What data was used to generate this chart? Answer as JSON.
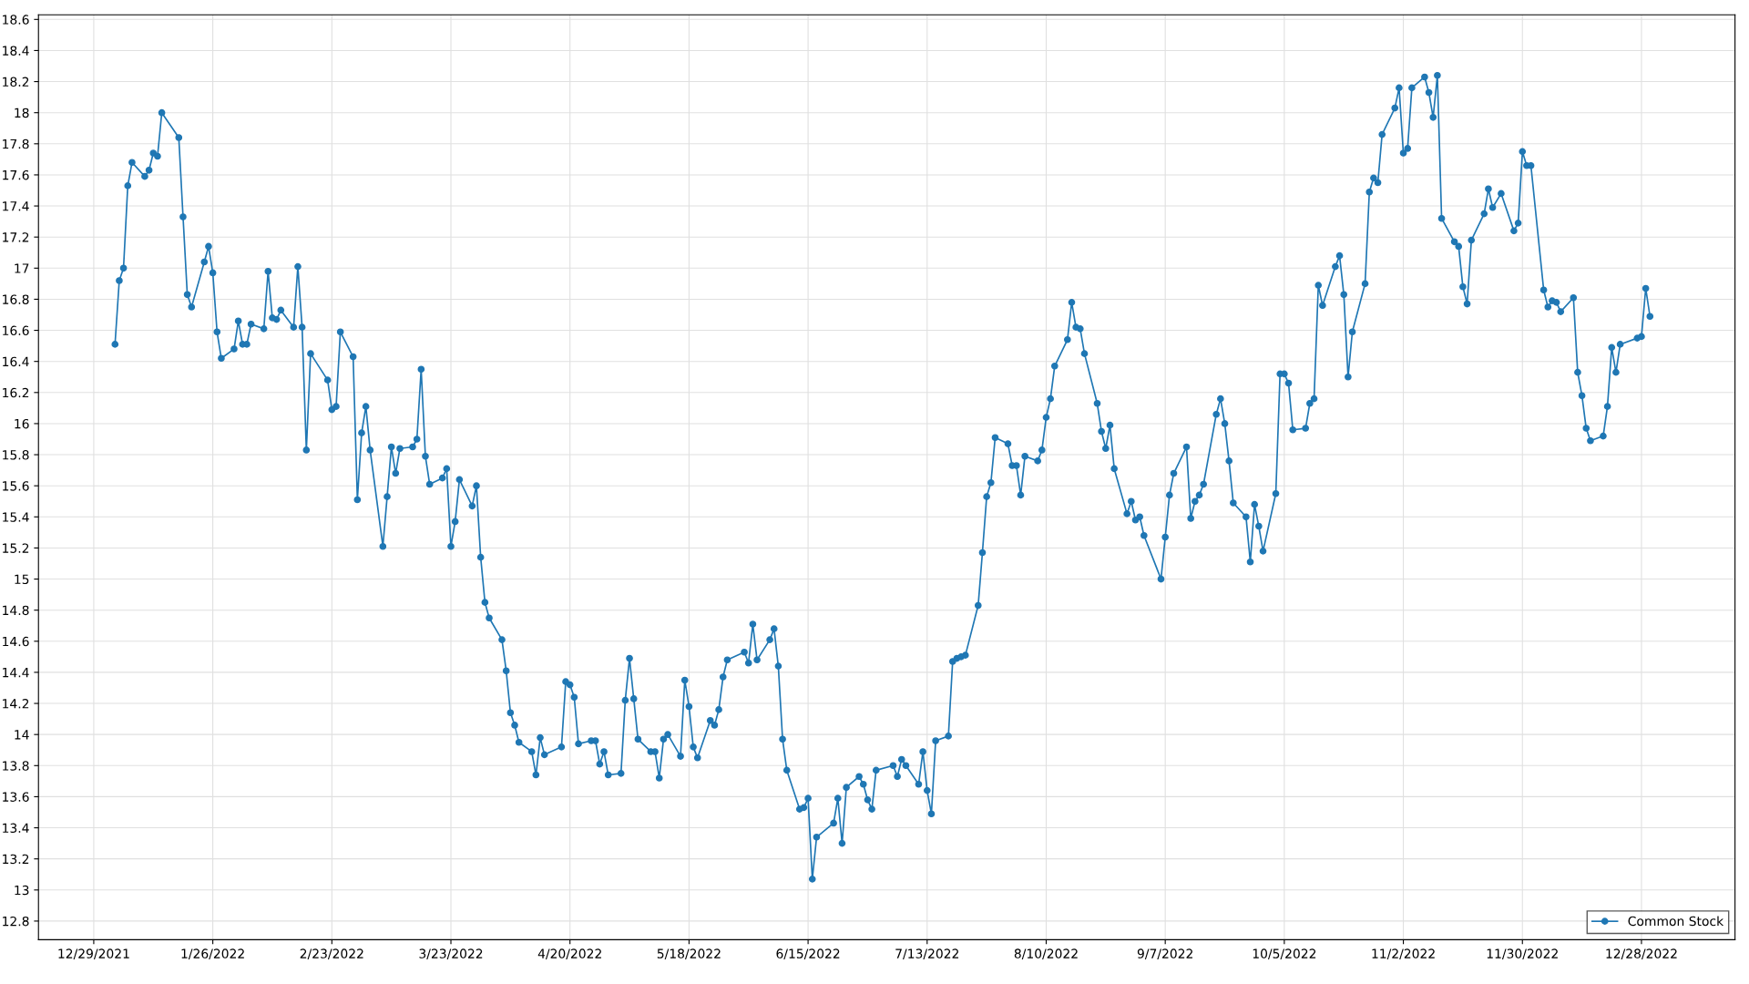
{
  "chart_data": {
    "type": "line",
    "x": [
      "2022-01-03",
      "2022-01-04",
      "2022-01-05",
      "2022-01-06",
      "2022-01-07",
      "2022-01-10",
      "2022-01-11",
      "2022-01-12",
      "2022-01-13",
      "2022-01-14",
      "2022-01-18",
      "2022-01-19",
      "2022-01-20",
      "2022-01-21",
      "2022-01-24",
      "2022-01-25",
      "2022-01-26",
      "2022-01-27",
      "2022-01-28",
      "2022-01-31",
      "2022-02-01",
      "2022-02-02",
      "2022-02-03",
      "2022-02-04",
      "2022-02-07",
      "2022-02-08",
      "2022-02-09",
      "2022-02-10",
      "2022-02-11",
      "2022-02-14",
      "2022-02-15",
      "2022-02-16",
      "2022-02-17",
      "2022-02-18",
      "2022-02-22",
      "2022-02-23",
      "2022-02-24",
      "2022-02-25",
      "2022-02-28",
      "2022-03-01",
      "2022-03-02",
      "2022-03-03",
      "2022-03-04",
      "2022-03-07",
      "2022-03-08",
      "2022-03-09",
      "2022-03-10",
      "2022-03-11",
      "2022-03-14",
      "2022-03-15",
      "2022-03-16",
      "2022-03-17",
      "2022-03-18",
      "2022-03-21",
      "2022-03-22",
      "2022-03-23",
      "2022-03-24",
      "2022-03-25",
      "2022-03-28",
      "2022-03-29",
      "2022-03-30",
      "2022-03-31",
      "2022-04-01",
      "2022-04-04",
      "2022-04-05",
      "2022-04-06",
      "2022-04-07",
      "2022-04-08",
      "2022-04-11",
      "2022-04-12",
      "2022-04-13",
      "2022-04-14",
      "2022-04-18",
      "2022-04-19",
      "2022-04-20",
      "2022-04-21",
      "2022-04-22",
      "2022-04-25",
      "2022-04-26",
      "2022-04-27",
      "2022-04-28",
      "2022-04-29",
      "2022-05-02",
      "2022-05-03",
      "2022-05-04",
      "2022-05-05",
      "2022-05-06",
      "2022-05-09",
      "2022-05-10",
      "2022-05-11",
      "2022-05-12",
      "2022-05-13",
      "2022-05-16",
      "2022-05-17",
      "2022-05-18",
      "2022-05-19",
      "2022-05-20",
      "2022-05-23",
      "2022-05-24",
      "2022-05-25",
      "2022-05-26",
      "2022-05-27",
      "2022-05-31",
      "2022-06-01",
      "2022-06-02",
      "2022-06-03",
      "2022-06-06",
      "2022-06-07",
      "2022-06-08",
      "2022-06-09",
      "2022-06-10",
      "2022-06-13",
      "2022-06-14",
      "2022-06-15",
      "2022-06-16",
      "2022-06-17",
      "2022-06-21",
      "2022-06-22",
      "2022-06-23",
      "2022-06-24",
      "2022-06-27",
      "2022-06-28",
      "2022-06-29",
      "2022-06-30",
      "2022-07-01",
      "2022-07-05",
      "2022-07-06",
      "2022-07-07",
      "2022-07-08",
      "2022-07-11",
      "2022-07-12",
      "2022-07-13",
      "2022-07-14",
      "2022-07-15",
      "2022-07-18",
      "2022-07-19",
      "2022-07-20",
      "2022-07-21",
      "2022-07-22",
      "2022-07-25",
      "2022-07-26",
      "2022-07-27",
      "2022-07-28",
      "2022-07-29",
      "2022-08-01",
      "2022-08-02",
      "2022-08-03",
      "2022-08-04",
      "2022-08-05",
      "2022-08-08",
      "2022-08-09",
      "2022-08-10",
      "2022-08-11",
      "2022-08-12",
      "2022-08-15",
      "2022-08-16",
      "2022-08-17",
      "2022-08-18",
      "2022-08-19",
      "2022-08-22",
      "2022-08-23",
      "2022-08-24",
      "2022-08-25",
      "2022-08-26",
      "2022-08-29",
      "2022-08-30",
      "2022-08-31",
      "2022-09-01",
      "2022-09-02",
      "2022-09-06",
      "2022-09-07",
      "2022-09-08",
      "2022-09-09",
      "2022-09-12",
      "2022-09-13",
      "2022-09-14",
      "2022-09-15",
      "2022-09-16",
      "2022-09-19",
      "2022-09-20",
      "2022-09-21",
      "2022-09-22",
      "2022-09-23",
      "2022-09-26",
      "2022-09-27",
      "2022-09-28",
      "2022-09-29",
      "2022-09-30",
      "2022-10-03",
      "2022-10-04",
      "2022-10-05",
      "2022-10-06",
      "2022-10-07",
      "2022-10-10",
      "2022-10-11",
      "2022-10-12",
      "2022-10-13",
      "2022-10-14",
      "2022-10-17",
      "2022-10-18",
      "2022-10-19",
      "2022-10-20",
      "2022-10-21",
      "2022-10-24",
      "2022-10-25",
      "2022-10-26",
      "2022-10-27",
      "2022-10-28",
      "2022-10-31",
      "2022-11-01",
      "2022-11-02",
      "2022-11-03",
      "2022-11-04",
      "2022-11-07",
      "2022-11-08",
      "2022-11-09",
      "2022-11-10",
      "2022-11-11",
      "2022-11-14",
      "2022-11-15",
      "2022-11-16",
      "2022-11-17",
      "2022-11-18",
      "2022-11-21",
      "2022-11-22",
      "2022-11-23",
      "2022-11-25",
      "2022-11-28",
      "2022-11-29",
      "2022-11-30",
      "2022-12-01",
      "2022-12-02",
      "2022-12-05",
      "2022-12-06",
      "2022-12-07",
      "2022-12-08",
      "2022-12-09",
      "2022-12-12",
      "2022-12-13",
      "2022-12-14",
      "2022-12-15",
      "2022-12-16",
      "2022-12-19",
      "2022-12-20",
      "2022-12-21",
      "2022-12-22",
      "2022-12-23",
      "2022-12-27",
      "2022-12-28",
      "2022-12-29",
      "2022-12-30"
    ],
    "series": [
      {
        "name": "Common Stock",
        "color": "#1f77b4",
        "values": [
          16.51,
          16.92,
          17.0,
          17.53,
          17.68,
          17.59,
          17.63,
          17.74,
          17.72,
          18.0,
          17.84,
          17.33,
          16.83,
          16.75,
          17.04,
          17.14,
          16.97,
          16.59,
          16.42,
          16.48,
          16.66,
          16.51,
          16.51,
          16.64,
          16.61,
          16.98,
          16.68,
          16.67,
          16.73,
          16.62,
          17.01,
          16.62,
          15.83,
          16.45,
          16.28,
          16.09,
          16.11,
          16.59,
          16.43,
          15.51,
          15.94,
          16.11,
          15.83,
          15.21,
          15.53,
          15.85,
          15.68,
          15.84,
          15.85,
          15.9,
          16.35,
          15.79,
          15.61,
          15.65,
          15.71,
          15.21,
          15.37,
          15.64,
          15.47,
          15.6,
          15.14,
          14.85,
          14.75,
          14.61,
          14.41,
          14.14,
          14.06,
          13.95,
          13.89,
          13.74,
          13.98,
          13.87,
          13.92,
          14.34,
          14.32,
          14.24,
          13.94,
          13.96,
          13.96,
          13.81,
          13.89,
          13.74,
          13.75,
          14.22,
          14.49,
          14.23,
          13.97,
          13.89,
          13.89,
          13.72,
          13.97,
          14.0,
          13.86,
          14.35,
          14.18,
          13.92,
          13.85,
          14.09,
          14.06,
          14.16,
          14.37,
          14.48,
          14.53,
          14.46,
          14.71,
          14.48,
          14.61,
          14.68,
          14.44,
          13.97,
          13.77,
          13.52,
          13.53,
          13.59,
          13.07,
          13.34,
          13.43,
          13.59,
          13.3,
          13.66,
          13.73,
          13.68,
          13.58,
          13.52,
          13.77,
          13.8,
          13.73,
          13.84,
          13.8,
          13.68,
          13.89,
          13.64,
          13.49,
          13.96,
          13.99,
          14.47,
          14.49,
          14.5,
          14.51,
          14.83,
          15.17,
          15.53,
          15.62,
          15.91,
          15.87,
          15.73,
          15.73,
          15.54,
          15.79,
          15.76,
          15.83,
          16.04,
          16.16,
          16.37,
          16.54,
          16.78,
          16.62,
          16.61,
          16.45,
          16.13,
          15.95,
          15.84,
          15.99,
          15.71,
          15.42,
          15.5,
          15.38,
          15.4,
          15.28,
          15.0,
          15.27,
          15.54,
          15.68,
          15.85,
          15.39,
          15.5,
          15.54,
          15.61,
          16.06,
          16.16,
          16.0,
          15.76,
          15.49,
          15.4,
          15.11,
          15.48,
          15.34,
          15.18,
          15.55,
          16.32,
          16.32,
          16.26,
          15.96,
          15.97,
          16.13,
          16.16,
          16.89,
          16.76,
          17.01,
          17.08,
          16.83,
          16.3,
          16.59,
          16.9,
          17.49,
          17.58,
          17.55,
          17.86,
          18.03,
          18.16,
          17.74,
          17.77,
          18.16,
          18.23,
          18.13,
          17.97,
          18.24,
          17.32,
          17.17,
          17.14,
          16.88,
          16.77,
          17.18,
          17.35,
          17.51,
          17.39,
          17.48,
          17.24,
          17.29,
          17.75,
          17.66,
          17.66,
          16.86,
          16.75,
          16.79,
          16.78,
          16.72,
          16.81,
          16.33,
          16.18,
          15.97,
          15.89,
          15.92,
          16.11,
          16.49,
          16.33,
          16.51,
          16.55,
          16.56,
          16.87,
          16.69
        ]
      }
    ],
    "xlim": [
      "2021-12-16",
      "2023-01-19"
    ],
    "xticks": [
      {
        "value": "2021-12-29",
        "label": "12/29/2021"
      },
      {
        "value": "2022-01-26",
        "label": "1/26/2022"
      },
      {
        "value": "2022-02-23",
        "label": "2/23/2022"
      },
      {
        "value": "2022-03-23",
        "label": "3/23/2022"
      },
      {
        "value": "2022-04-20",
        "label": "4/20/2022"
      },
      {
        "value": "2022-05-18",
        "label": "5/18/2022"
      },
      {
        "value": "2022-06-15",
        "label": "6/15/2022"
      },
      {
        "value": "2022-07-13",
        "label": "7/13/2022"
      },
      {
        "value": "2022-08-10",
        "label": "8/10/2022"
      },
      {
        "value": "2022-09-07",
        "label": "9/7/2022"
      },
      {
        "value": "2022-10-05",
        "label": "10/5/2022"
      },
      {
        "value": "2022-11-02",
        "label": "11/2/2022"
      },
      {
        "value": "2022-11-30",
        "label": "11/30/2022"
      },
      {
        "value": "2022-12-28",
        "label": "12/28/2022"
      }
    ],
    "ylim": [
      12.68,
      18.63
    ],
    "yticks": [
      12.8,
      13,
      13.2,
      13.4,
      13.6,
      13.8,
      14,
      14.2,
      14.4,
      14.6,
      14.8,
      15,
      15.2,
      15.4,
      15.6,
      15.8,
      16,
      16.2,
      16.4,
      16.6,
      16.8,
      17,
      17.2,
      17.4,
      17.6,
      17.8,
      18,
      18.2,
      18.4,
      18.6
    ],
    "grid": true,
    "legend": "bottom right",
    "marker": "circle",
    "line_style": "solid"
  }
}
